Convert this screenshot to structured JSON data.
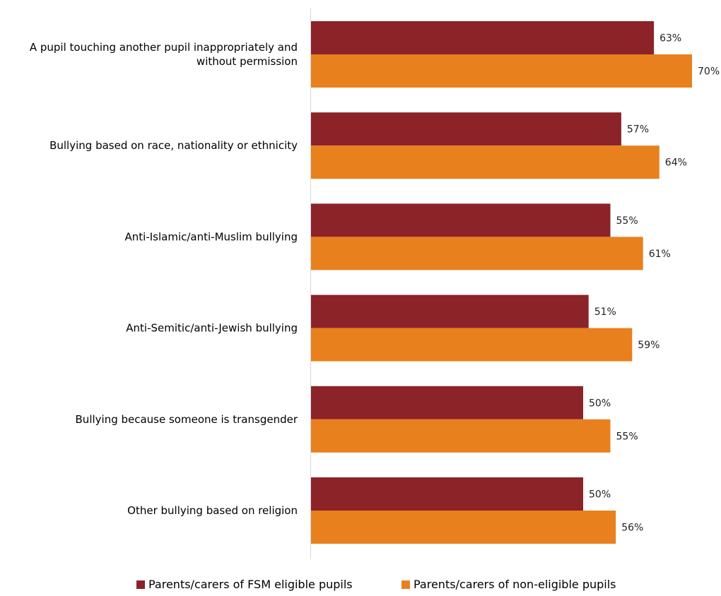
{
  "chart_data": {
    "type": "bar",
    "orientation": "horizontal",
    "categories": [
      [
        "A pupil touching another pupil inappropriately and",
        "without permission"
      ],
      [
        "Bullying based on race, nationality or ethnicity"
      ],
      [
        "Anti-Islamic/anti-Muslim bullying"
      ],
      [
        "Anti-Semitic/anti-Jewish bullying"
      ],
      [
        "Bullying because someone is transgender"
      ],
      [
        "Other bullying based on religion"
      ]
    ],
    "series": [
      {
        "name": "Parents/carers of FSM eligible pupils",
        "values": [
          63,
          57,
          55,
          51,
          50,
          50
        ],
        "labels": [
          "63%",
          "57%",
          "55%",
          "51%",
          "50%",
          "50%"
        ],
        "color": "#8B2329"
      },
      {
        "name": "Parents/carers of non-eligible pupils",
        "values": [
          70,
          64,
          61,
          59,
          55,
          56
        ],
        "labels": [
          "70%",
          "64%",
          "61%",
          "59%",
          "55%",
          "56%"
        ],
        "color": "#E8801E"
      }
    ],
    "xlim": [
      0,
      70
    ],
    "grid": false,
    "legend_position": "bottom"
  }
}
